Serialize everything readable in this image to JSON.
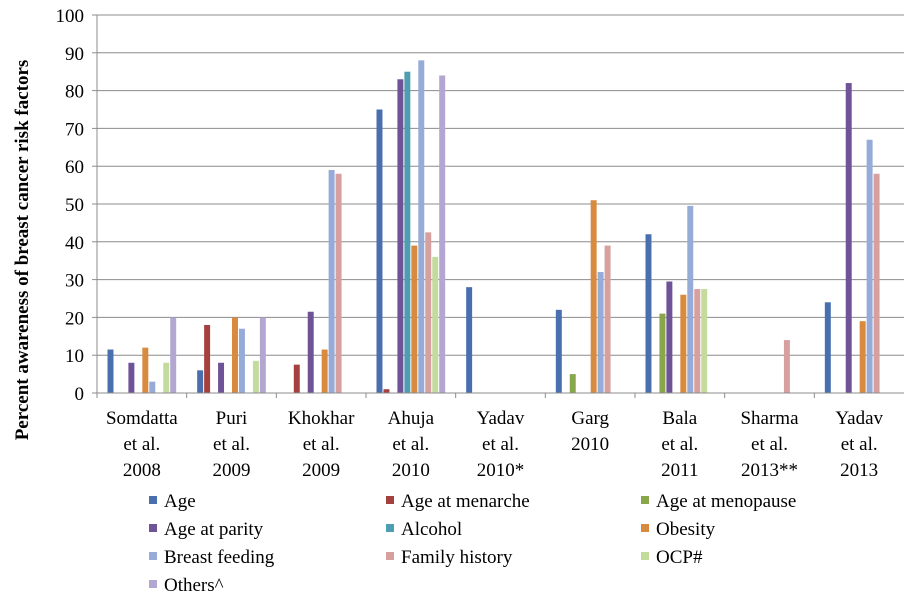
{
  "chart_data": {
    "type": "bar",
    "title": "",
    "xlabel": "",
    "ylabel": "Percent awareness of breast cancer risk factors",
    "ylim": [
      0,
      100
    ],
    "yticks": [
      "0",
      "10",
      "20",
      "30",
      "40",
      "50",
      "60",
      "70",
      "80",
      "90",
      "100"
    ],
    "grid": true,
    "legend_position": "bottom",
    "categories": [
      [
        "Somdatta",
        "et al.",
        "2008"
      ],
      [
        "Puri",
        "et al.",
        "2009"
      ],
      [
        "Khokhar",
        "et al.",
        "2009"
      ],
      [
        "Ahuja",
        "et al.",
        "2010"
      ],
      [
        "Yadav",
        "et al.",
        "2010*"
      ],
      [
        "Garg",
        "2010"
      ],
      [
        "Bala",
        "et al.",
        "2011"
      ],
      [
        "Sharma",
        "et al.",
        "2013**"
      ],
      [
        "Yadav",
        "et al.",
        "2013"
      ]
    ],
    "series": [
      {
        "name": "Age",
        "color": "#4A6FAE",
        "values": [
          11.5,
          6,
          0,
          75,
          28,
          22,
          42,
          0,
          24
        ]
      },
      {
        "name": "Age at menarche",
        "color": "#A4403D",
        "values": [
          0,
          18,
          7.5,
          1,
          0,
          0,
          0,
          0,
          0
        ]
      },
      {
        "name": "Age at menopause",
        "color": "#8AA64A",
        "values": [
          0,
          0,
          0,
          0,
          0,
          5,
          21,
          0,
          0
        ]
      },
      {
        "name": "Age at parity",
        "color": "#6E5497",
        "values": [
          8,
          8,
          21.5,
          83,
          0,
          0,
          29.5,
          0,
          82
        ]
      },
      {
        "name": "Alcohol",
        "color": "#4F9DB0",
        "values": [
          0,
          0,
          0,
          85,
          0,
          0,
          0,
          0,
          0
        ]
      },
      {
        "name": "Obesity",
        "color": "#D88A3E",
        "values": [
          12,
          20,
          11.5,
          39,
          0,
          51,
          26,
          0,
          19
        ]
      },
      {
        "name": "Breast feeding",
        "color": "#96ABD8",
        "values": [
          3,
          17,
          59,
          88,
          0,
          32,
          49.5,
          0,
          67
        ]
      },
      {
        "name": "Family history",
        "color": "#D6A09E",
        "values": [
          0,
          0,
          58,
          42.5,
          0,
          39,
          27.5,
          14,
          58
        ]
      },
      {
        "name": "OCP#",
        "color": "#C4DB9E",
        "values": [
          8,
          8.5,
          0,
          36,
          0,
          0,
          27.5,
          0,
          0
        ]
      },
      {
        "name": "Others^",
        "color": "#B3A6D0",
        "values": [
          20,
          20,
          0,
          84,
          0,
          0,
          0,
          0,
          0
        ]
      }
    ]
  }
}
